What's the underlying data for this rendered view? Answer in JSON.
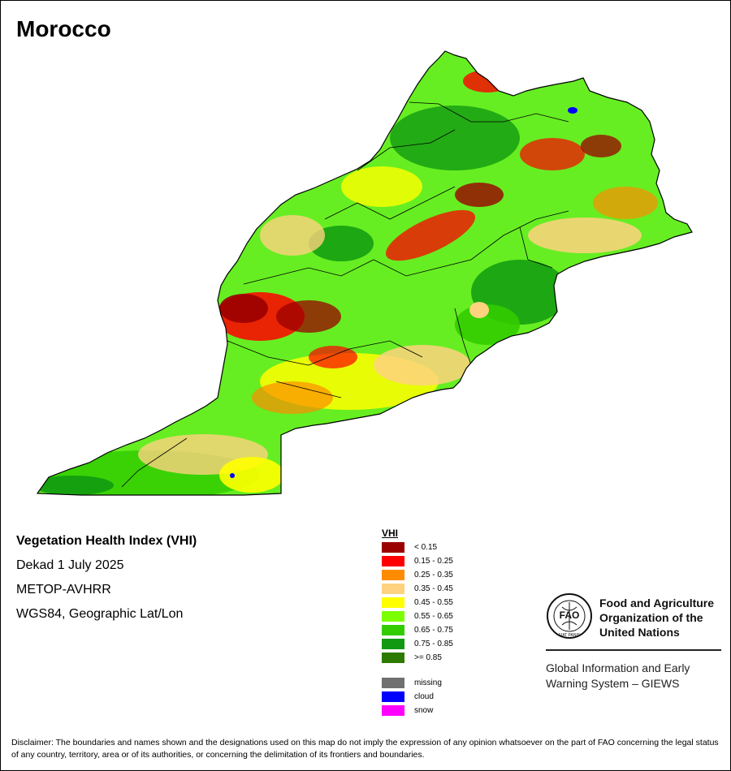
{
  "map": {
    "title": "Morocco",
    "info": {
      "index_name": "Vegetation Health Index (VHI)",
      "period": "Dekad 1 July 2025",
      "sensor": "METOP-AVHRR",
      "projection": "WGS84, Geographic Lat/Lon"
    }
  },
  "legend": {
    "title": "VHI",
    "classes": [
      {
        "label": "< 0.15",
        "color": "#9b0000"
      },
      {
        "label": "0.15 - 0.25",
        "color": "#ff0000"
      },
      {
        "label": "0.25 - 0.35",
        "color": "#ff8c00"
      },
      {
        "label": "0.35 - 0.45",
        "color": "#ffd27f"
      },
      {
        "label": "0.45 - 0.55",
        "color": "#ffff00"
      },
      {
        "label": "0.55 - 0.65",
        "color": "#7cff00"
      },
      {
        "label": "0.65 - 0.75",
        "color": "#33cc00"
      },
      {
        "label": "0.75 - 0.85",
        "color": "#119a11"
      },
      {
        "label": ">= 0.85",
        "color": "#2d7a00"
      }
    ],
    "extra": [
      {
        "label": "missing",
        "color": "#707070"
      },
      {
        "label": "cloud",
        "color": "#0000ff"
      },
      {
        "label": "snow",
        "color": "#ff00ff"
      }
    ]
  },
  "organization": {
    "name_lines": [
      "Food and Agriculture",
      "Organization of the",
      "United Nations"
    ],
    "logo_text": "FAO",
    "logo_motto": "FIAT PANIS",
    "system_lines": [
      "Global Information and Early",
      "Warning System – GIEWS"
    ]
  },
  "disclaimer": "Disclaimer: The boundaries and names shown and the designations used on this map do not imply the expression of any opinion whatsoever on the part of FAO concerning the legal status of any country, territory, area or of its authorities, or concerning the delimitation of its frontiers and boundaries."
}
